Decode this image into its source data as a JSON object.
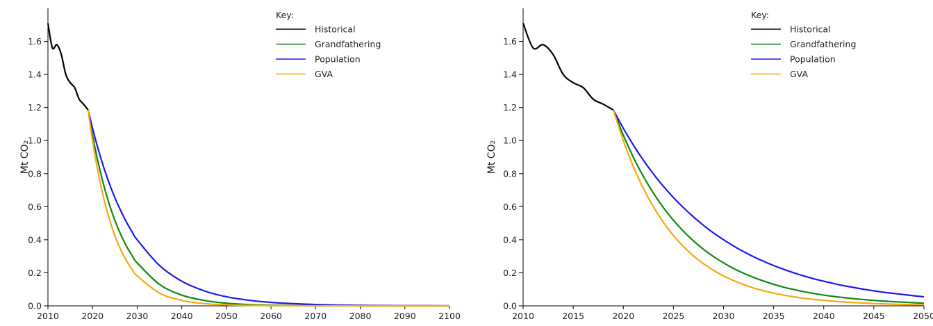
{
  "chart_data": [
    {
      "type": "line",
      "ylabel": "Mt CO₂",
      "legend_title": "Key:",
      "legend": "upper right",
      "grid": false,
      "x": [
        2010,
        2011,
        2012,
        2013,
        2014,
        2015,
        2016,
        2017,
        2018,
        2019,
        2020,
        2021,
        2022,
        2023,
        2024,
        2025,
        2026,
        2027,
        2028,
        2029,
        2030,
        2035,
        2040,
        2045,
        2050,
        2055,
        2060,
        2065,
        2070,
        2075,
        2080,
        2085,
        2090,
        2095,
        2100
      ],
      "xlim": [
        2010,
        2100
      ],
      "xticks": [
        2010,
        2020,
        2030,
        2040,
        2050,
        2060,
        2070,
        2080,
        2090,
        2100
      ],
      "ylim": [
        0,
        1.8
      ],
      "yticks": [
        {
          "value": 0,
          "label": "0.0"
        },
        0.2,
        0.4,
        0.6,
        0.8,
        {
          "value": 1,
          "label": "1.0"
        },
        1.2,
        1.4,
        1.6
      ],
      "series": [
        {
          "name": "Historical",
          "color": "#000000",
          "values": [
            1.71,
            1.56,
            1.58,
            1.52,
            1.4,
            1.35,
            1.32,
            1.25,
            1.22,
            1.185,
            null,
            null,
            null,
            null,
            null,
            null,
            null,
            null,
            null,
            null,
            null,
            null,
            null,
            null,
            null,
            null,
            null,
            null,
            null,
            null,
            null,
            null,
            null,
            null,
            null
          ]
        },
        {
          "name": "Grandfathering",
          "color": "#118811",
          "values": [
            null,
            null,
            null,
            null,
            null,
            null,
            null,
            null,
            null,
            1.185,
            1.032,
            0.899,
            0.783,
            0.682,
            0.594,
            0.518,
            0.451,
            0.393,
            0.342,
            0.298,
            0.26,
            0.13,
            0.065,
            0.033,
            0.016,
            0.008,
            0.004,
            0.002,
            0.001,
            0.001,
            0,
            0,
            0,
            0,
            0
          ]
        },
        {
          "name": "Population",
          "color": "#1a1aee",
          "values": [
            null,
            null,
            null,
            null,
            null,
            null,
            null,
            null,
            null,
            1.185,
            1.074,
            0.973,
            0.881,
            0.798,
            0.723,
            0.655,
            0.594,
            0.538,
            0.487,
            0.441,
            0.4,
            0.244,
            0.149,
            0.091,
            0.055,
            0.034,
            0.021,
            0.013,
            0.008,
            0.005,
            0.003,
            0.002,
            0.001,
            0.001,
            0
          ]
        },
        {
          "name": "GVA",
          "color": "#f5a80f",
          "values": [
            null,
            null,
            null,
            null,
            null,
            null,
            null,
            null,
            null,
            1.185,
            0.999,
            0.842,
            0.71,
            0.599,
            0.505,
            0.425,
            0.359,
            0.302,
            0.255,
            0.215,
            0.181,
            0.077,
            0.033,
            0.014,
            0.006,
            0.003,
            0.001,
            0.001,
            0,
            0,
            0,
            0,
            0,
            0,
            0
          ]
        }
      ]
    },
    {
      "type": "line",
      "ylabel": "Mt CO₂",
      "legend_title": "Key:",
      "legend": "upper right",
      "grid": false,
      "x": [
        2010,
        2011,
        2012,
        2013,
        2014,
        2015,
        2016,
        2017,
        2018,
        2019,
        2020,
        2021,
        2022,
        2023,
        2024,
        2025,
        2026,
        2027,
        2028,
        2029,
        2030,
        2031,
        2032,
        2033,
        2034,
        2035,
        2036,
        2037,
        2038,
        2039,
        2040,
        2041,
        2042,
        2043,
        2044,
        2045,
        2046,
        2047,
        2048,
        2049,
        2050
      ],
      "xlim": [
        2010,
        2050
      ],
      "xticks": [
        2010,
        2015,
        2020,
        2025,
        2030,
        2035,
        2040,
        2045,
        2050
      ],
      "ylim": [
        0,
        1.8
      ],
      "yticks": [
        {
          "value": 0,
          "label": "0.0"
        },
        0.2,
        0.4,
        0.6,
        0.8,
        {
          "value": 1,
          "label": "1.0"
        },
        1.2,
        1.4,
        1.6
      ],
      "series": [
        {
          "name": "Historical",
          "color": "#000000",
          "values": [
            1.71,
            1.56,
            1.58,
            1.52,
            1.4,
            1.35,
            1.32,
            1.25,
            1.22,
            1.185,
            null,
            null,
            null,
            null,
            null,
            null,
            null,
            null,
            null,
            null,
            null,
            null,
            null,
            null,
            null,
            null,
            null,
            null,
            null,
            null,
            null,
            null,
            null,
            null,
            null,
            null,
            null,
            null,
            null,
            null,
            null
          ]
        },
        {
          "name": "Grandfathering",
          "color": "#118811",
          "values": [
            null,
            null,
            null,
            null,
            null,
            null,
            null,
            null,
            null,
            1.185,
            1.032,
            0.899,
            0.783,
            0.682,
            0.594,
            0.518,
            0.451,
            0.393,
            0.342,
            0.298,
            0.26,
            0.226,
            0.197,
            0.172,
            0.15,
            0.13,
            0.113,
            0.099,
            0.086,
            0.075,
            0.065,
            0.057,
            0.05,
            0.043,
            0.038,
            0.033,
            0.029,
            0.025,
            0.022,
            0.019,
            0.016
          ]
        },
        {
          "name": "Population",
          "color": "#1a1aee",
          "values": [
            null,
            null,
            null,
            null,
            null,
            null,
            null,
            null,
            null,
            1.185,
            1.074,
            0.973,
            0.881,
            0.798,
            0.723,
            0.655,
            0.594,
            0.538,
            0.487,
            0.441,
            0.4,
            0.362,
            0.328,
            0.297,
            0.269,
            0.244,
            0.221,
            0.2,
            0.181,
            0.164,
            0.149,
            0.135,
            0.122,
            0.111,
            0.1,
            0.091,
            0.082,
            0.075,
            0.068,
            0.061,
            0.055
          ]
        },
        {
          "name": "GVA",
          "color": "#f5a80f",
          "values": [
            null,
            null,
            null,
            null,
            null,
            null,
            null,
            null,
            null,
            1.185,
            0.999,
            0.842,
            0.71,
            0.599,
            0.505,
            0.425,
            0.359,
            0.302,
            0.255,
            0.215,
            0.181,
            0.153,
            0.129,
            0.108,
            0.091,
            0.077,
            0.065,
            0.055,
            0.046,
            0.039,
            0.033,
            0.028,
            0.023,
            0.02,
            0.017,
            0.014,
            0.012,
            0.01,
            0.008,
            0.007,
            0.006
          ]
        }
      ]
    }
  ]
}
